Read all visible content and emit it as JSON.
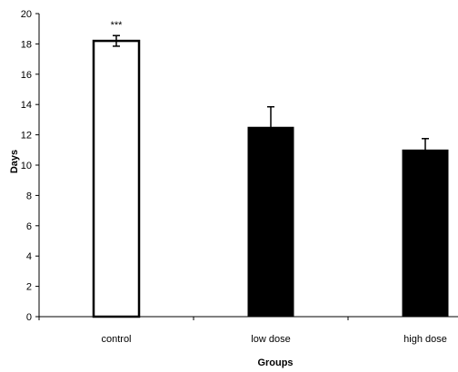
{
  "chart_data": {
    "type": "bar",
    "categories": [
      "control",
      "low dose",
      "high dose"
    ],
    "values": [
      18.2,
      12.5,
      11.0
    ],
    "errors": [
      0.35,
      1.35,
      0.75
    ],
    "bar_colors": [
      "#ffffff",
      "#000000",
      "#000000"
    ],
    "bar_outline": "#000000",
    "annotations": [
      "***",
      "",
      ""
    ],
    "ylim": [
      0,
      20
    ],
    "yticks": [
      "0",
      "2",
      "4",
      "6",
      "8",
      "10",
      "12",
      "14",
      "16",
      "18",
      "20"
    ],
    "ylabel": "Days",
    "xlabel": "Groups",
    "grid": false,
    "legend": "none"
  }
}
